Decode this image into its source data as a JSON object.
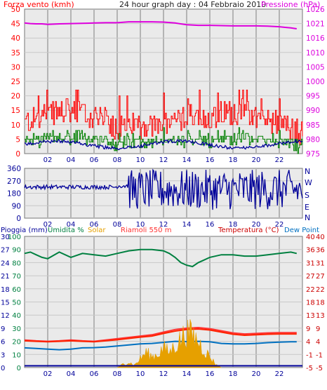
{
  "title": "24 hour graph day : 04 Febbraio 2010",
  "colors": {
    "background": "#eaeaea",
    "grid": "#bbbbbb",
    "wind": "#ff0000",
    "pressure": "#dd00dd",
    "gust_green": "#008000",
    "wind_avg": "#000099",
    "direction": "#000099",
    "rain": "#000099",
    "humidity": "#008040",
    "solar": "#e6a000",
    "riamoli": "#ff3333",
    "temperature": "#cc0000",
    "temp_line": "#ff2200",
    "dew_point": "#0070c0"
  },
  "panels": {
    "top": {
      "left_title": "Forza vento (kmh)",
      "right_title": "Pressione (hPa)"
    },
    "middle": {
      "right_labels": [
        "N",
        "W",
        "S",
        "E",
        "N"
      ]
    },
    "bottom": {
      "left_title_rain": "Pioggia (mm)",
      "left_title_humidity": "Umidita %",
      "left_title_solar": "Solar",
      "left_title_riamoli": "Riamoli 550 m",
      "right_title_temp": "Temperatura (°C)",
      "right_title_dew": "Dew Point"
    }
  },
  "chart_data": [
    {
      "type": "line",
      "title": "Forza vento (kmh) / Pressione (hPa)",
      "x_ticks": [
        "02",
        "04",
        "06",
        "08",
        "10",
        "12",
        "14",
        "16",
        "18",
        "20",
        "22"
      ],
      "x_range": [
        0,
        24
      ],
      "y_left": {
        "label": "Forza vento (kmh)",
        "ticks": [
          0,
          5,
          10,
          15,
          20,
          25,
          30,
          35,
          40,
          45,
          50
        ],
        "range": [
          0,
          50
        ]
      },
      "y_right": {
        "label": "Pressione (hPa)",
        "ticks": [
          975,
          980,
          985,
          990,
          995,
          1000,
          1005,
          1010,
          1016,
          1021,
          1026
        ],
        "range": [
          975,
          1026
        ]
      },
      "series": [
        {
          "name": "Pressione",
          "axis": "right",
          "x": [
            0,
            0.5,
            1,
            1.5,
            2,
            2.5,
            3,
            4,
            5,
            6,
            7,
            8,
            9,
            10,
            11,
            12,
            13,
            14,
            15,
            16,
            17,
            18,
            19,
            20,
            21,
            22,
            22.5,
            23,
            23.5
          ],
          "y": [
            1021.2,
            1021.0,
            1020.9,
            1020.9,
            1020.7,
            1020.8,
            1020.9,
            1021.0,
            1021.1,
            1021.2,
            1021.3,
            1021.3,
            1021.6,
            1021.6,
            1021.6,
            1021.5,
            1021.2,
            1020.6,
            1020.4,
            1020.4,
            1020.3,
            1020.2,
            1020.2,
            1020.2,
            1020.1,
            1019.9,
            1019.7,
            1019.5,
            1019.2
          ]
        }
      ]
    },
    {
      "type": "line",
      "title": "Direzione vento",
      "x_ticks": [
        "02",
        "04",
        "06",
        "08",
        "10",
        "12",
        "14",
        "16",
        "18",
        "20",
        "22"
      ],
      "x_range": [
        0,
        24
      ],
      "y_left": {
        "ticks": [
          0,
          90,
          180,
          270,
          360
        ],
        "range": [
          0,
          360
        ]
      },
      "y_right": {
        "ticks": [
          "N",
          "W",
          "S",
          "E",
          "N"
        ]
      }
    },
    {
      "type": "line",
      "title": "Pioggia / Umidita / Solar / Temperatura / Dew Point",
      "x_ticks": [
        "02",
        "04",
        "06",
        "08",
        "10",
        "12",
        "14",
        "16",
        "18",
        "20",
        "22"
      ],
      "x_range": [
        0,
        24
      ],
      "y_left_rain": {
        "label": "Pioggia (mm)",
        "ticks": [
          0,
          3,
          6,
          9,
          12,
          15,
          18,
          21,
          24,
          27,
          30
        ],
        "range": [
          0,
          30
        ]
      },
      "y_left_humidity": {
        "label": "Umidita %",
        "ticks": [
          0,
          10,
          20,
          30,
          40,
          50,
          60,
          70,
          80,
          90,
          100
        ],
        "range": [
          0,
          100
        ]
      },
      "y_right_dew": {
        "label": "Dew Point",
        "ticks": [
          -5,
          -1,
          4,
          9,
          13,
          18,
          22,
          27,
          31,
          36,
          40
        ]
      },
      "y_right_temp": {
        "label": "Temperatura (°C)",
        "ticks": [
          -5,
          -1,
          4,
          9,
          13,
          18,
          22,
          27,
          31,
          36,
          40
        ],
        "range": [
          -5,
          40
        ]
      },
      "series": [
        {
          "name": "Umidita %",
          "axis": "humidity",
          "x": [
            0,
            0.5,
            1,
            1.5,
            2,
            3,
            4,
            5,
            6,
            7,
            8,
            9,
            10,
            11,
            12,
            12.5,
            13,
            13.5,
            14,
            14.5,
            15,
            15.5,
            16,
            17,
            18,
            19,
            20,
            21,
            22,
            23,
            23.5
          ],
          "y": [
            87,
            88,
            86,
            84,
            83,
            88,
            84,
            87,
            86,
            85,
            87,
            89,
            90,
            90,
            89,
            87,
            84,
            80,
            78,
            77,
            80,
            82,
            84,
            86,
            86,
            85,
            85,
            86,
            87,
            88,
            87
          ]
        },
        {
          "name": "Riamoli 550 m",
          "axis": "temp",
          "x": [
            0,
            1,
            2,
            3,
            4,
            5,
            6,
            7,
            8,
            9,
            10,
            11,
            12,
            13,
            14,
            15,
            16,
            17,
            18,
            19,
            20,
            21,
            22,
            23,
            23.5
          ],
          "y": [
            4.5,
            4.2,
            4.0,
            4.2,
            4.5,
            4.2,
            4.0,
            4.5,
            5.0,
            5.5,
            6.0,
            6.5,
            7.5,
            8.5,
            9.0,
            9.2,
            8.8,
            8.0,
            7.2,
            6.8,
            7.0,
            7.2,
            7.3,
            7.3,
            7.3
          ]
        },
        {
          "name": "Temperatura (°C)",
          "axis": "temp",
          "x": [
            0,
            1,
            2,
            3,
            4,
            5,
            6,
            7,
            8,
            9,
            10,
            11,
            12,
            13,
            14,
            15,
            16,
            17,
            18,
            19,
            20,
            21,
            22,
            23,
            23.5
          ],
          "y": [
            4.2,
            4.0,
            3.8,
            4.0,
            4.2,
            4.0,
            3.8,
            4.2,
            4.6,
            5.1,
            5.6,
            6.0,
            7.0,
            7.9,
            8.5,
            8.7,
            8.3,
            7.5,
            6.7,
            6.3,
            6.5,
            6.7,
            6.8,
            6.8,
            6.8
          ]
        },
        {
          "name": "Dew Point",
          "axis": "temp",
          "x": [
            0,
            1,
            2,
            3,
            4,
            5,
            6,
            7,
            8,
            9,
            10,
            11,
            12,
            13,
            14,
            15,
            16,
            17,
            18,
            19,
            20,
            21,
            22,
            23,
            23.5
          ],
          "y": [
            1.5,
            1.3,
            1.0,
            0.8,
            1.0,
            1.5,
            1.6,
            1.8,
            2.2,
            2.6,
            3.0,
            3.2,
            3.6,
            4.0,
            3.9,
            4.0,
            3.8,
            3.2,
            3.0,
            3.0,
            3.2,
            3.5,
            3.7,
            3.8,
            3.8
          ]
        },
        {
          "name": "Solar",
          "axis": "rain",
          "x": [
            0,
            8,
            8.2,
            8.5,
            9,
            9.5,
            10,
            10.5,
            11,
            11.5,
            12,
            12.5,
            13,
            13.5,
            14,
            14.5,
            15,
            15.5,
            16,
            16.5,
            17,
            24
          ],
          "y": [
            0,
            0,
            0.3,
            0.8,
            1.2,
            0.6,
            2.0,
            3.5,
            2.5,
            3.0,
            4.5,
            3.5,
            5.0,
            6.5,
            8.0,
            7.5,
            6.0,
            4.0,
            2.5,
            0.8,
            0,
            0
          ]
        },
        {
          "name": "Pioggia (mm)",
          "axis": "rain",
          "x": [
            0,
            24
          ],
          "y": [
            0,
            0
          ]
        }
      ]
    }
  ]
}
